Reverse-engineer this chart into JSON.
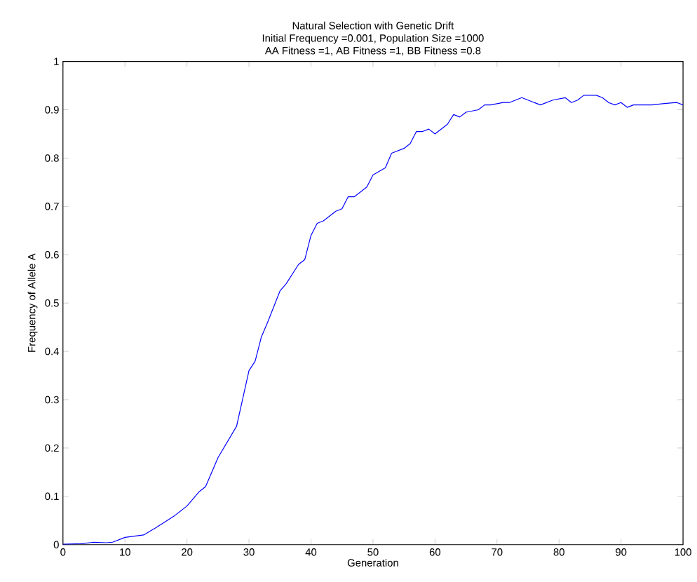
{
  "chart_data": {
    "type": "line",
    "title": "Natural Selection with Genetic Drift",
    "subtitle": "Initial Frequency =0.001, Population Size =1000\nAA Fitness =1, AB Fitness =1, BB Fitness =0.8",
    "xlabel": "Generation",
    "ylabel": "Frequency of Allele A",
    "xlim": [
      0,
      100
    ],
    "ylim": [
      0,
      1
    ],
    "xticks": [
      0,
      10,
      20,
      30,
      40,
      50,
      60,
      70,
      80,
      90,
      100
    ],
    "yticks": [
      0,
      0.1,
      0.2,
      0.3,
      0.4,
      0.5,
      0.6,
      0.7,
      0.8,
      0.9,
      1
    ],
    "grid": false,
    "series": [
      {
        "color": "#0000ff",
        "x": [
          0,
          3,
          5,
          7,
          8,
          10,
          13,
          15,
          18,
          20,
          22,
          23,
          25,
          28,
          30,
          31,
          32,
          33,
          35,
          36,
          38,
          39,
          40,
          41,
          42,
          44,
          45,
          46,
          47,
          49,
          50,
          52,
          53,
          55,
          56,
          57,
          58,
          59,
          60,
          62,
          63,
          64,
          65,
          67,
          68,
          69,
          71,
          72,
          74,
          75,
          77,
          79,
          81,
          82,
          83,
          84,
          86,
          87,
          88,
          89,
          90,
          91,
          92,
          95,
          97,
          99,
          100
        ],
        "values": [
          0.001,
          0.002,
          0.005,
          0.004,
          0.005,
          0.015,
          0.02,
          0.035,
          0.06,
          0.08,
          0.11,
          0.12,
          0.18,
          0.245,
          0.36,
          0.38,
          0.43,
          0.46,
          0.525,
          0.54,
          0.58,
          0.59,
          0.64,
          0.665,
          0.67,
          0.69,
          0.695,
          0.72,
          0.72,
          0.74,
          0.765,
          0.78,
          0.81,
          0.82,
          0.83,
          0.855,
          0.855,
          0.86,
          0.85,
          0.87,
          0.89,
          0.885,
          0.895,
          0.9,
          0.91,
          0.91,
          0.915,
          0.915,
          0.925,
          0.92,
          0.91,
          0.92,
          0.925,
          0.915,
          0.92,
          0.93,
          0.93,
          0.925,
          0.915,
          0.91,
          0.915,
          0.905,
          0.91,
          0.91,
          0.913,
          0.915,
          0.91
        ]
      }
    ]
  }
}
